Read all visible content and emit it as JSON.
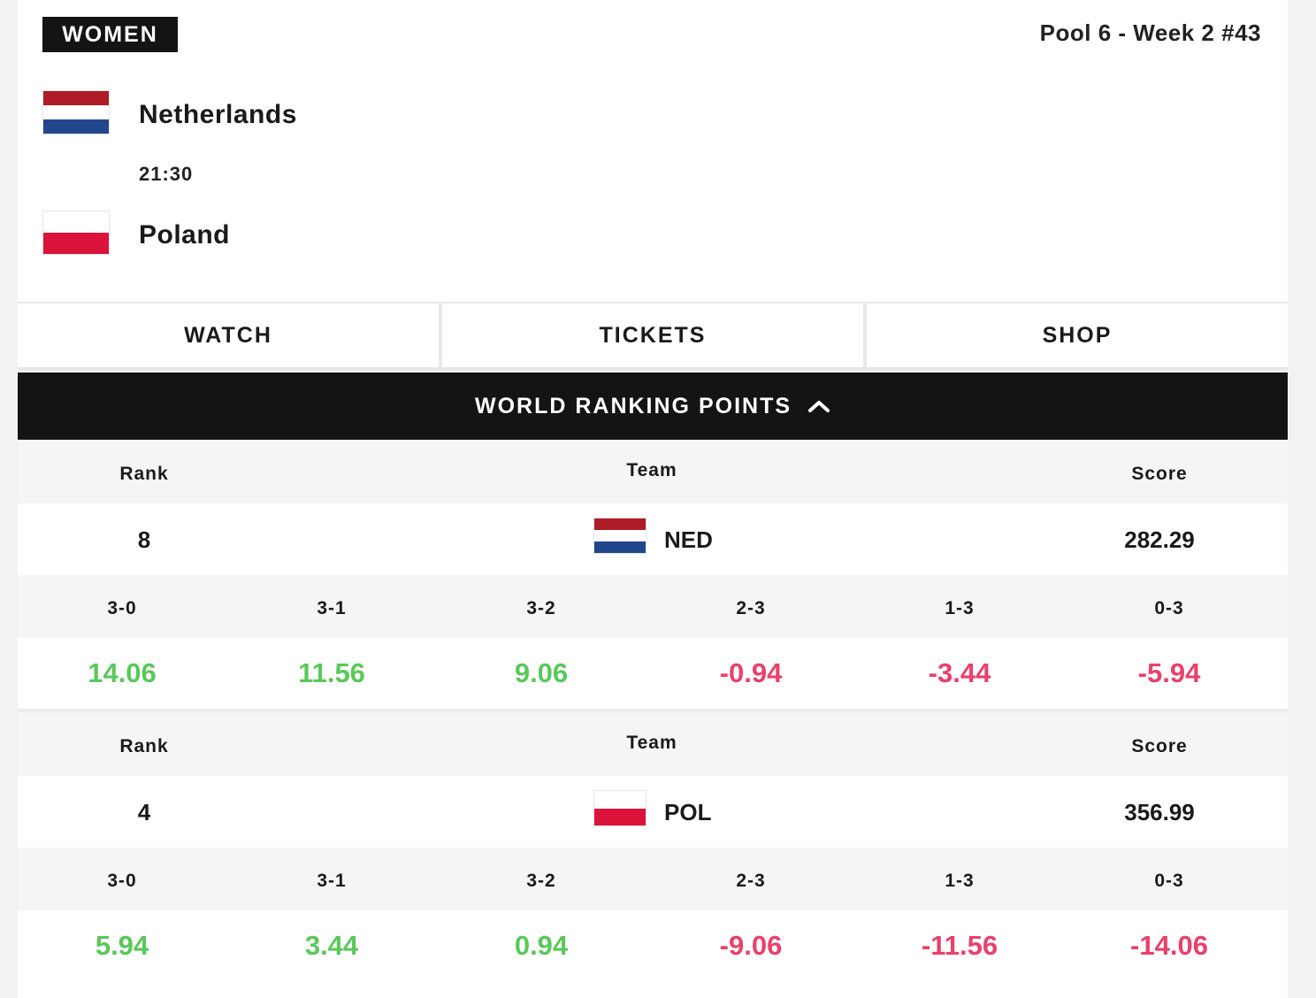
{
  "match": {
    "gender": "WOMEN",
    "pool_info": "Pool 6 - Week 2 #43",
    "time": "21:30",
    "home": {
      "name": "Netherlands",
      "flag_colors": [
        "#ae1c28",
        "#ffffff",
        "#21468b"
      ]
    },
    "away": {
      "name": "Poland",
      "flag_colors": [
        "#ffffff",
        "#dc143c"
      ]
    }
  },
  "actions": {
    "watch": "WATCH",
    "tickets": "TICKETS",
    "shop": "SHOP"
  },
  "ranking": {
    "title": "WORLD RANKING POINTS",
    "toggle_icon": "chevron-up-icon",
    "headers": {
      "rank": "Rank",
      "team": "Team",
      "score": "Score"
    },
    "scenarios": [
      "3-0",
      "3-1",
      "3-2",
      "2-3",
      "1-3",
      "0-3"
    ],
    "teams": [
      {
        "rank": "8",
        "code": "NED",
        "score": "282.29",
        "points": [
          "14.06",
          "11.56",
          "9.06",
          "-0.94",
          "-3.44",
          "-5.94"
        ]
      },
      {
        "rank": "4",
        "code": "POL",
        "score": "356.99",
        "points": [
          "5.94",
          "3.44",
          "0.94",
          "-9.06",
          "-11.56",
          "-14.06"
        ]
      }
    ],
    "positive_color": "#5ac85a",
    "negative_color": "#e8416c"
  }
}
